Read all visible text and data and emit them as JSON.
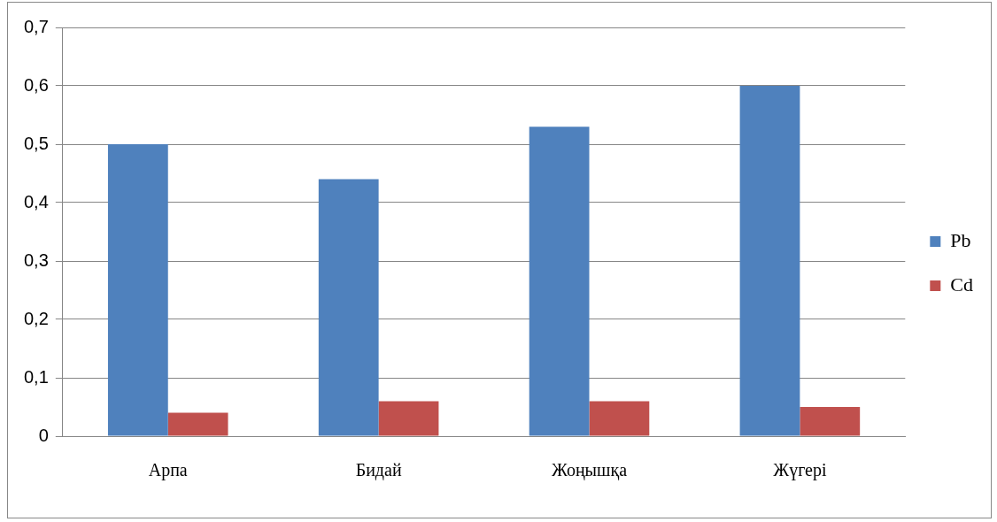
{
  "chart_data": {
    "type": "bar",
    "categories": [
      "Арпа",
      "Бидай",
      "Жоңышқа",
      "Жүгері"
    ],
    "series": [
      {
        "name": "Pb",
        "color": "#4f81bd",
        "values": [
          0.5,
          0.44,
          0.53,
          0.6
        ]
      },
      {
        "name": "Cd",
        "color": "#c0504d",
        "values": [
          0.04,
          0.06,
          0.06,
          0.05
        ]
      }
    ],
    "ylim": [
      0,
      0.7
    ],
    "yticks": [
      0,
      {
        "value": 0.1,
        "label": "0,1"
      },
      {
        "value": 0.2,
        "label": "0,2"
      },
      {
        "value": 0.3,
        "label": "0,3"
      },
      {
        "value": 0.4,
        "label": "0,4"
      },
      {
        "value": 0.5,
        "label": "0,5"
      },
      {
        "value": 0.6,
        "label": "0,6"
      },
      {
        "value": 0.7,
        "label": "0,7"
      }
    ],
    "grid": "y",
    "legend": "right"
  }
}
